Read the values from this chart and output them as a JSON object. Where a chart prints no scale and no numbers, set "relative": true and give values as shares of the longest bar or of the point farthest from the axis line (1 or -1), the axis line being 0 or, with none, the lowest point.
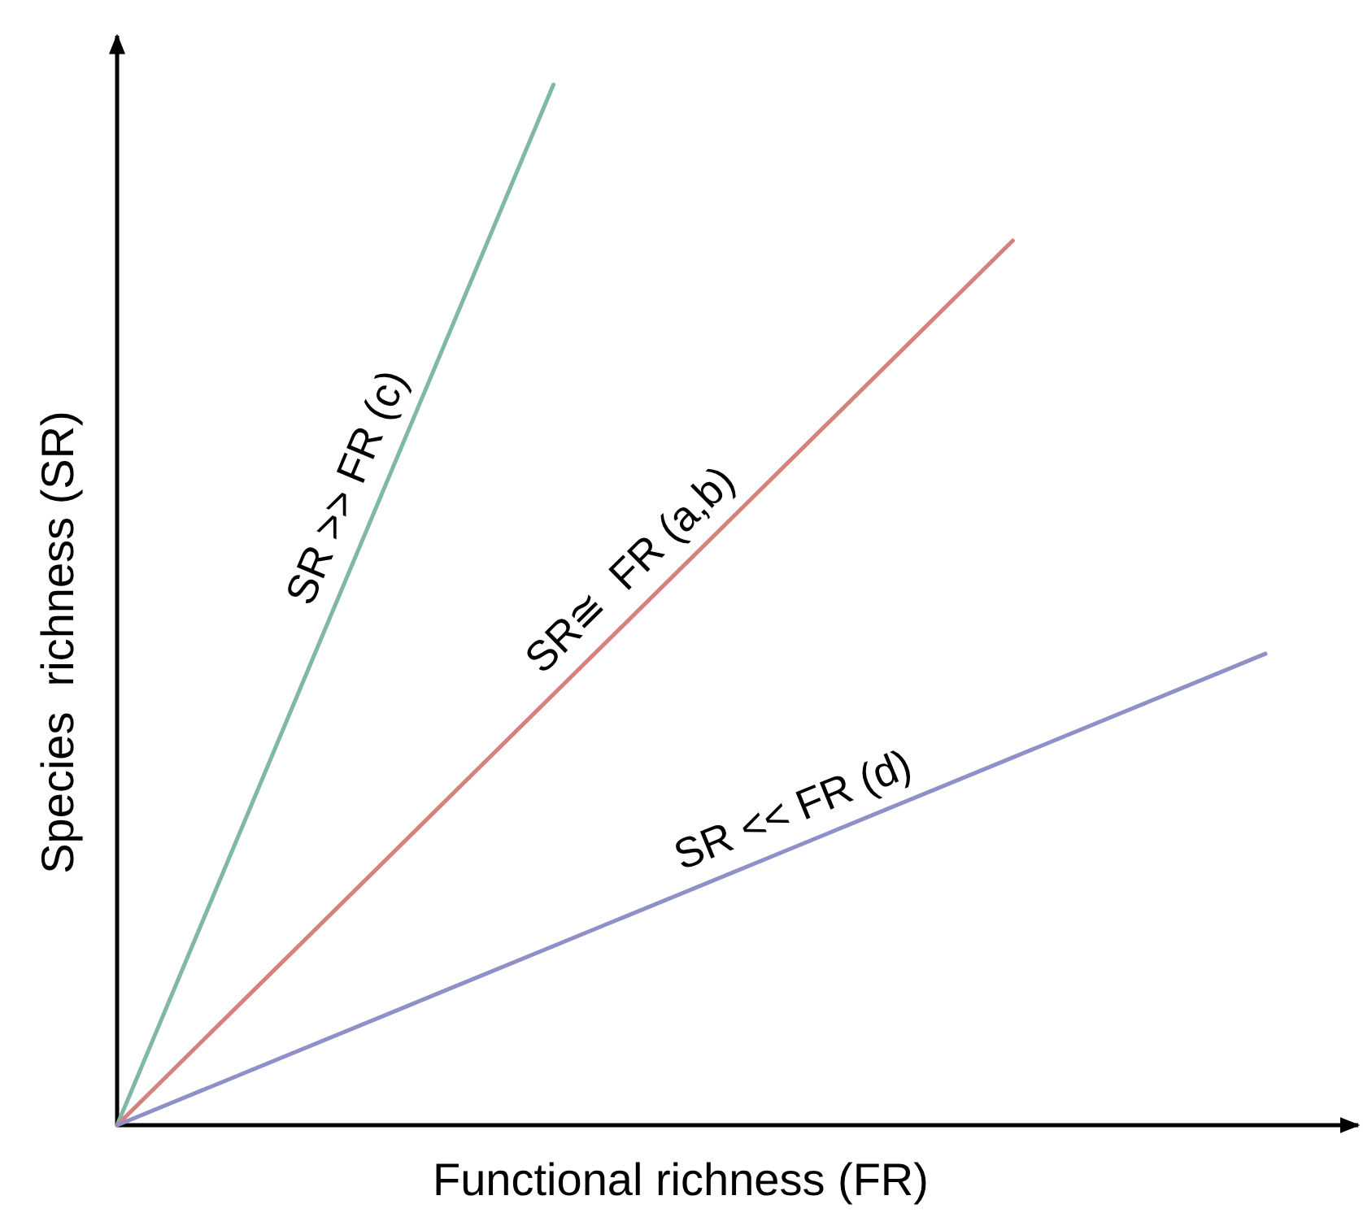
{
  "chart_data": {
    "type": "line",
    "relative": true,
    "xlabel": "Functional richness (FR)",
    "ylabel": "Species  richness (SR)",
    "grid": false,
    "legend": false,
    "marker": "none",
    "line_style": "solid",
    "categories": [
      null,
      null,
      null,
      null,
      null,
      null,
      null,
      null,
      null,
      null,
      null,
      null,
      null,
      null,
      null,
      null,
      null,
      null,
      null,
      null,
      null,
      null,
      null,
      null,
      null,
      null,
      null,
      null,
      null,
      null,
      null,
      null,
      null,
      null,
      null,
      null,
      null,
      null,
      null,
      null,
      null,
      null,
      null,
      null,
      null,
      null,
      null,
      null,
      null,
      null,
      null
    ],
    "series": [
      {
        "color": "#7fb8a8",
        "values": [
          0,
          null,
          null,
          null,
          null,
          null,
          null,
          null,
          null,
          null,
          null,
          null,
          null,
          null,
          null,
          null,
          null,
          null,
          null,
          1,
          null,
          null,
          null,
          null,
          null,
          null,
          null,
          null,
          null,
          null,
          null,
          null,
          null,
          null,
          null,
          null,
          null,
          null,
          null,
          null,
          null,
          null,
          null,
          null,
          null,
          null,
          null,
          null,
          null,
          null,
          null
        ]
      },
      {
        "color": "#d4827a",
        "values": [
          0,
          null,
          null,
          null,
          null,
          null,
          null,
          null,
          null,
          null,
          null,
          null,
          null,
          null,
          null,
          null,
          null,
          null,
          null,
          null,
          null,
          null,
          null,
          null,
          null,
          null,
          null,
          null,
          null,
          null,
          null,
          null,
          null,
          null,
          null,
          null,
          null,
          null,
          null,
          0.85,
          null,
          null,
          null,
          null,
          null,
          null,
          null,
          null,
          null,
          null,
          null
        ]
      },
      {
        "color": "#8f90c8",
        "values": [
          0,
          null,
          null,
          null,
          null,
          null,
          null,
          null,
          null,
          null,
          null,
          null,
          null,
          null,
          null,
          null,
          null,
          null,
          null,
          null,
          null,
          null,
          null,
          null,
          null,
          null,
          null,
          null,
          null,
          null,
          null,
          null,
          null,
          null,
          null,
          null,
          null,
          null,
          null,
          null,
          null,
          null,
          null,
          null,
          null,
          null,
          null,
          null,
          null,
          null,
          0.453
        ]
      }
    ],
    "annotations": [
      "SR >> FR (c)",
      "SR≅  FR (a,b)",
      "SR << FR (d)"
    ]
  }
}
